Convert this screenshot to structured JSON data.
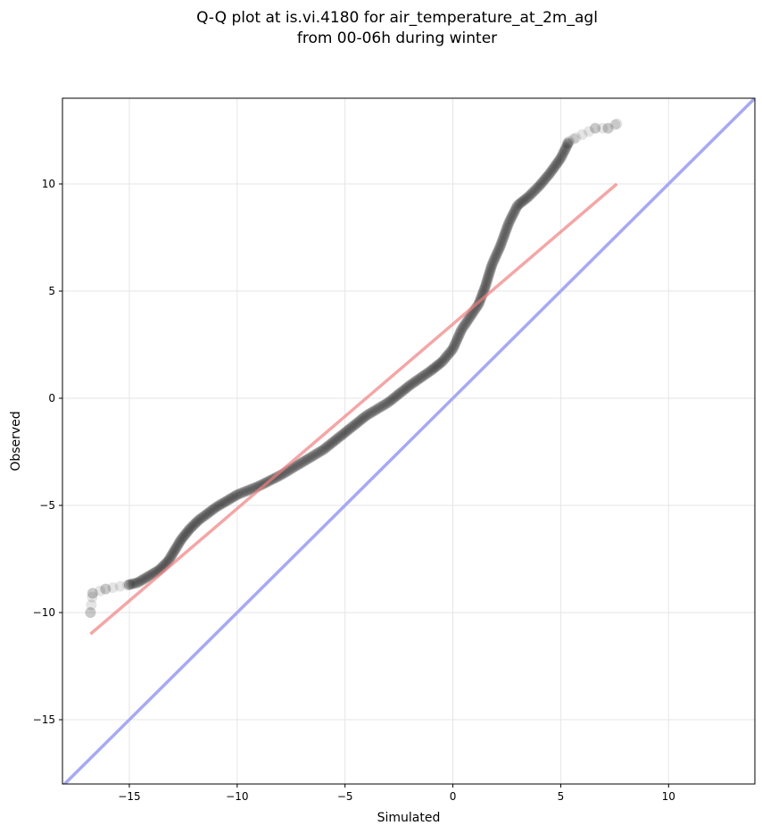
{
  "chart_data": {
    "type": "scatter",
    "title": "Q-Q plot at is.vi.4180 for air_temperature_at_2m_agl",
    "subtitle": "from 00-06h during winter",
    "xlabel": "Simulated",
    "ylabel": "Observed",
    "xlim": [
      -18.1,
      14.0
    ],
    "ylim": [
      -18.0,
      14.0
    ],
    "xticks": [
      -15,
      -10,
      -5,
      0,
      5,
      10
    ],
    "yticks": [
      -15,
      -10,
      -5,
      0,
      5,
      10
    ],
    "xtick_labels": [
      "−15",
      "−10",
      "−5",
      "0",
      "5",
      "10"
    ],
    "ytick_labels": [
      "−15",
      "−10",
      "−5",
      "0",
      "5",
      "10"
    ],
    "grid": true,
    "quantile_curve": [
      [
        -16.8,
        -10.0
      ],
      [
        -16.7,
        -9.1
      ],
      [
        -16.1,
        -8.9
      ],
      [
        -15.0,
        -8.7
      ],
      [
        -14.6,
        -8.6
      ],
      [
        -14.1,
        -8.3
      ],
      [
        -13.6,
        -8.0
      ],
      [
        -13.2,
        -7.6
      ],
      [
        -12.9,
        -7.1
      ],
      [
        -12.6,
        -6.6
      ],
      [
        -12.2,
        -6.1
      ],
      [
        -11.8,
        -5.7
      ],
      [
        -11.4,
        -5.4
      ],
      [
        -11.0,
        -5.1
      ],
      [
        -10.5,
        -4.8
      ],
      [
        -10.0,
        -4.5
      ],
      [
        -9.0,
        -4.1
      ],
      [
        -8.0,
        -3.6
      ],
      [
        -7.0,
        -3.0
      ],
      [
        -6.0,
        -2.4
      ],
      [
        -5.0,
        -1.6
      ],
      [
        -4.0,
        -0.8
      ],
      [
        -3.0,
        -0.2
      ],
      [
        -2.0,
        0.6
      ],
      [
        -1.0,
        1.3
      ],
      [
        -0.5,
        1.7
      ],
      [
        0.0,
        2.3
      ],
      [
        0.4,
        3.2
      ],
      [
        0.8,
        3.8
      ],
      [
        1.2,
        4.4
      ],
      [
        1.5,
        5.2
      ],
      [
        1.8,
        6.2
      ],
      [
        2.2,
        7.1
      ],
      [
        2.6,
        8.2
      ],
      [
        3.0,
        9.0
      ],
      [
        3.5,
        9.4
      ],
      [
        4.0,
        9.9
      ],
      [
        4.5,
        10.5
      ],
      [
        5.0,
        11.2
      ],
      [
        5.4,
        12.0
      ],
      [
        6.0,
        12.3
      ],
      [
        6.6,
        12.6
      ],
      [
        7.2,
        12.6
      ],
      [
        7.6,
        12.8
      ]
    ],
    "isolated_points": [
      {
        "x": -16.8,
        "y": -10.0
      },
      {
        "x": -16.7,
        "y": -9.1
      },
      {
        "x": -16.1,
        "y": -8.9
      },
      {
        "x": -15.0,
        "y": -8.7
      },
      {
        "x": 5.3,
        "y": 11.9
      },
      {
        "x": 5.6,
        "y": 12.1
      },
      {
        "x": 6.6,
        "y": 12.6
      },
      {
        "x": 7.2,
        "y": 12.6
      },
      {
        "x": 7.6,
        "y": 12.8
      }
    ],
    "fit_line": {
      "x": [
        -16.8,
        7.6
      ],
      "y": [
        -11.0,
        10.0
      ],
      "color": "#f4a6a6"
    },
    "identity_line": {
      "x": [
        -18.1,
        14.0
      ],
      "y": [
        -18.1,
        14.0
      ],
      "color": "#a7a9f3"
    },
    "marker_color": "#000000"
  }
}
